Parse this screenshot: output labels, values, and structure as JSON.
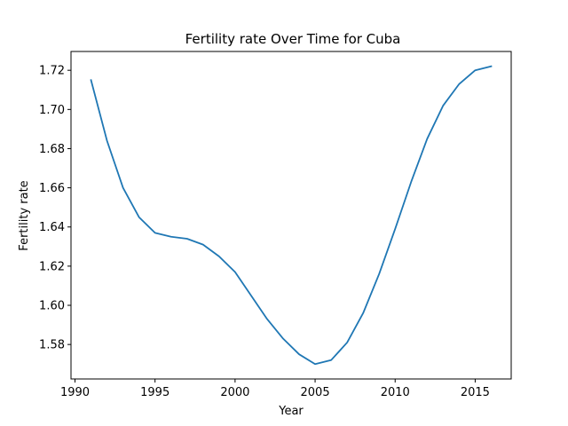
{
  "chart_data": {
    "type": "line",
    "title": "Fertility rate Over Time for Cuba",
    "xlabel": "Year",
    "ylabel": "Fertility rate",
    "xlim": [
      1989.75,
      2017.25
    ],
    "ylim": [
      1.5624,
      1.7296
    ],
    "xticks": [
      1990,
      1995,
      2000,
      2005,
      2010,
      2015
    ],
    "yticks": [
      1.58,
      1.6,
      1.62,
      1.64,
      1.66,
      1.68,
      1.7,
      1.72
    ],
    "grid": false,
    "legend": "none",
    "series": [
      {
        "color": "#1f77b4",
        "x": [
          1991,
          1992,
          1993,
          1994,
          1995,
          1996,
          1997,
          1998,
          1999,
          2000,
          2001,
          2002,
          2003,
          2004,
          2005,
          2006,
          2007,
          2008,
          2009,
          2010,
          2011,
          2012,
          2013,
          2014,
          2015,
          2016
        ],
        "y": [
          1.715,
          1.684,
          1.66,
          1.645,
          1.637,
          1.635,
          1.634,
          1.631,
          1.625,
          1.617,
          1.605,
          1.593,
          1.583,
          1.575,
          1.57,
          1.572,
          1.581,
          1.596,
          1.616,
          1.639,
          1.663,
          1.685,
          1.702,
          1.713,
          1.72,
          1.722
        ]
      }
    ]
  }
}
